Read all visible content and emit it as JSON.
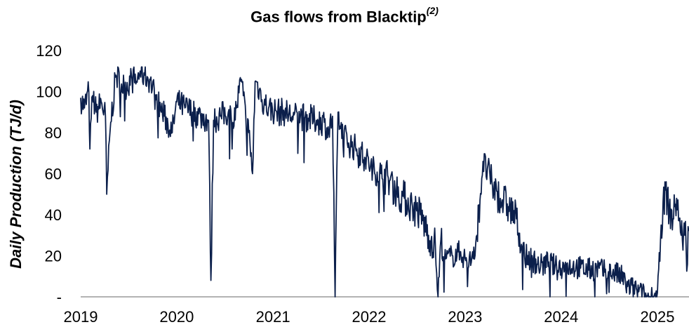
{
  "chart_data": {
    "type": "line",
    "title": "Gas flows from Blacktip",
    "title_superscript": "(2)",
    "xlabel": "",
    "ylabel": "Daily Production (TJ/d)",
    "x_ticks": [
      "2019",
      "2020",
      "2021",
      "2022",
      "2023",
      "2024",
      "2025"
    ],
    "y_ticks": [
      "-",
      "20",
      "40",
      "60",
      "80",
      "100",
      "120"
    ],
    "ylim": [
      0,
      120
    ],
    "xlim": [
      "2019-01-01",
      "2025-05-01"
    ],
    "grid": false,
    "legend": "none",
    "line_color": "#0b1f4b",
    "series": [
      {
        "x": [
          "2019-01-01",
          "2019-01-15",
          "2019-02-01",
          "2019-02-05",
          "2019-02-15",
          "2019-03-01",
          "2019-03-20",
          "2019-04-05",
          "2019-04-10",
          "2019-04-25",
          "2019-05-15",
          "2019-06-15",
          "2019-07-15",
          "2019-08-01",
          "2019-08-15",
          "2019-09-01",
          "2019-09-20",
          "2019-10-15",
          "2019-11-15",
          "2019-12-15",
          "2020-01-01",
          "2020-02-01",
          "2020-03-01",
          "2020-04-01",
          "2020-05-01",
          "2020-05-10",
          "2020-05-20",
          "2020-06-15",
          "2020-07-15",
          "2020-08-01",
          "2020-08-15",
          "2020-09-01",
          "2020-09-10",
          "2020-09-20",
          "2020-10-01",
          "2020-10-15",
          "2020-10-25",
          "2020-11-10",
          "2020-11-20",
          "2020-12-15",
          "2021-01-15",
          "2021-02-15",
          "2021-03-15",
          "2021-04-15",
          "2021-05-15",
          "2021-06-15",
          "2021-07-15",
          "2021-08-01",
          "2021-08-15",
          "2021-08-25",
          "2021-09-05",
          "2021-09-15",
          "2021-10-15",
          "2021-11-15",
          "2021-12-15",
          "2022-01-15",
          "2022-02-15",
          "2022-03-15",
          "2022-04-15",
          "2022-05-15",
          "2022-06-15",
          "2022-07-15",
          "2022-08-15",
          "2022-09-10",
          "2022-09-20",
          "2022-10-01",
          "2022-10-15",
          "2022-11-15",
          "2022-12-15",
          "2023-01-15",
          "2023-02-15",
          "2023-03-10",
          "2023-04-15",
          "2023-05-15",
          "2023-06-15",
          "2023-07-15",
          "2023-08-15",
          "2023-09-15",
          "2023-10-15",
          "2023-11-15",
          "2023-12-15",
          "2024-01-15",
          "2024-02-15",
          "2024-03-15",
          "2024-04-15",
          "2024-05-15",
          "2024-06-15",
          "2024-07-15",
          "2024-08-15",
          "2024-09-10",
          "2024-10-15",
          "2024-11-15",
          "2024-12-15",
          "2025-01-01",
          "2025-01-15",
          "2025-02-01",
          "2025-02-15",
          "2025-03-01",
          "2025-03-15",
          "2025-04-01",
          "2025-04-15",
          "2025-04-30"
        ],
        "y": [
          97,
          92,
          100,
          72,
          98,
          90,
          95,
          88,
          50,
          85,
          108,
          102,
          106,
          105,
          110,
          108,
          106,
          96,
          88,
          80,
          95,
          92,
          90,
          88,
          86,
          8,
          86,
          88,
          90,
          85,
          92,
          105,
          98,
          86,
          80,
          60,
          105,
          101,
          96,
          92,
          90,
          90,
          88,
          88,
          87,
          86,
          85,
          80,
          88,
          0,
          90,
          82,
          75,
          72,
          68,
          62,
          60,
          58,
          52,
          48,
          44,
          40,
          30,
          25,
          0,
          28,
          18,
          20,
          22,
          15,
          30,
          66,
          54,
          48,
          44,
          38,
          20,
          18,
          15,
          17,
          14,
          15,
          15,
          14,
          13,
          14,
          12,
          12,
          10,
          5,
          3,
          0,
          0,
          2,
          35,
          52,
          42,
          38,
          48,
          30,
          30,
          32
        ]
      }
    ]
  }
}
